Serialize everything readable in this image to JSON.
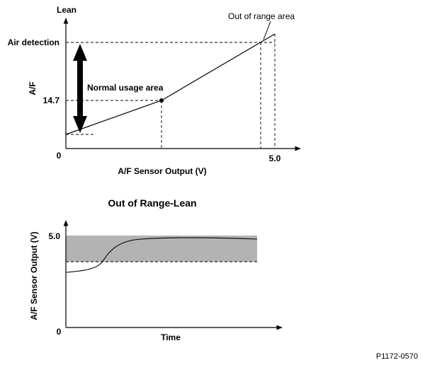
{
  "top_chart": {
    "y_axis_top_label": "Lean",
    "y_axis_title": "A/F",
    "x_axis_title": "A/F Sensor Output (V)",
    "origin_label": "0",
    "x_tick_label": "5.0",
    "y_tick_air_detection": "Air detection",
    "y_tick_14_7": "14.7",
    "annotation_out_of_range": "Out of range area",
    "annotation_normal_usage": "Normal usage area"
  },
  "bottom_chart": {
    "title": "Out of Range-Lean",
    "y_axis_title": "A/F Sensor Output (V)",
    "x_axis_title": "Time",
    "origin_label": "0",
    "y_tick_label": "5.0"
  },
  "figure_code": "P1172-0570",
  "colors": {
    "line": "#000000",
    "shaded_band": "#b3b3b3",
    "background": "#ffffff"
  }
}
